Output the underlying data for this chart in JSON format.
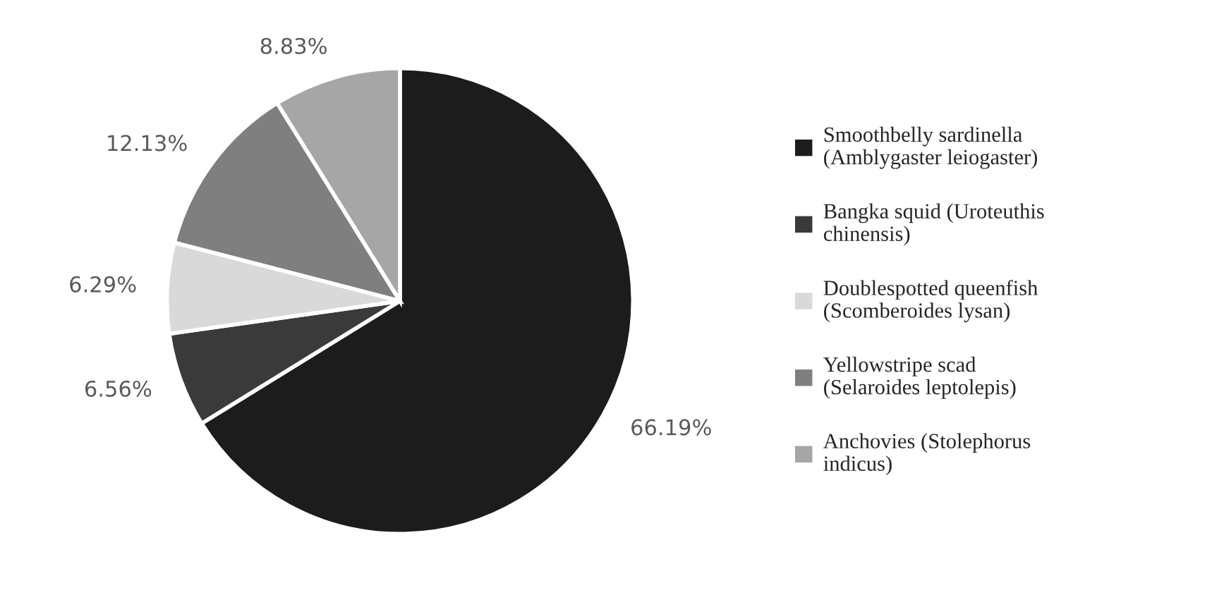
{
  "chart_data": {
    "type": "pie",
    "categories": [
      "Smoothbelly sardinella\n(Amblygaster leiogaster)",
      "Bangka squid (Uroteuthis\nchinensis)",
      "Doublespotted queenfish\n(Scomberoides lysan)",
      "Yellowstripe scad\n(Selaroides leptolepis)",
      "Anchovies (Stolephorus\nindicus)"
    ],
    "values": [
      66.19,
      6.56,
      6.29,
      12.13,
      8.83
    ],
    "value_labels": [
      "66.19%",
      "6.56%",
      "6.29%",
      "12.13%",
      "8.83%"
    ],
    "colors": [
      "#1c1c1c",
      "#3a3a3a",
      "#d9d9d9",
      "#7f7f7f",
      "#a6a6a6"
    ],
    "legend": "right"
  }
}
